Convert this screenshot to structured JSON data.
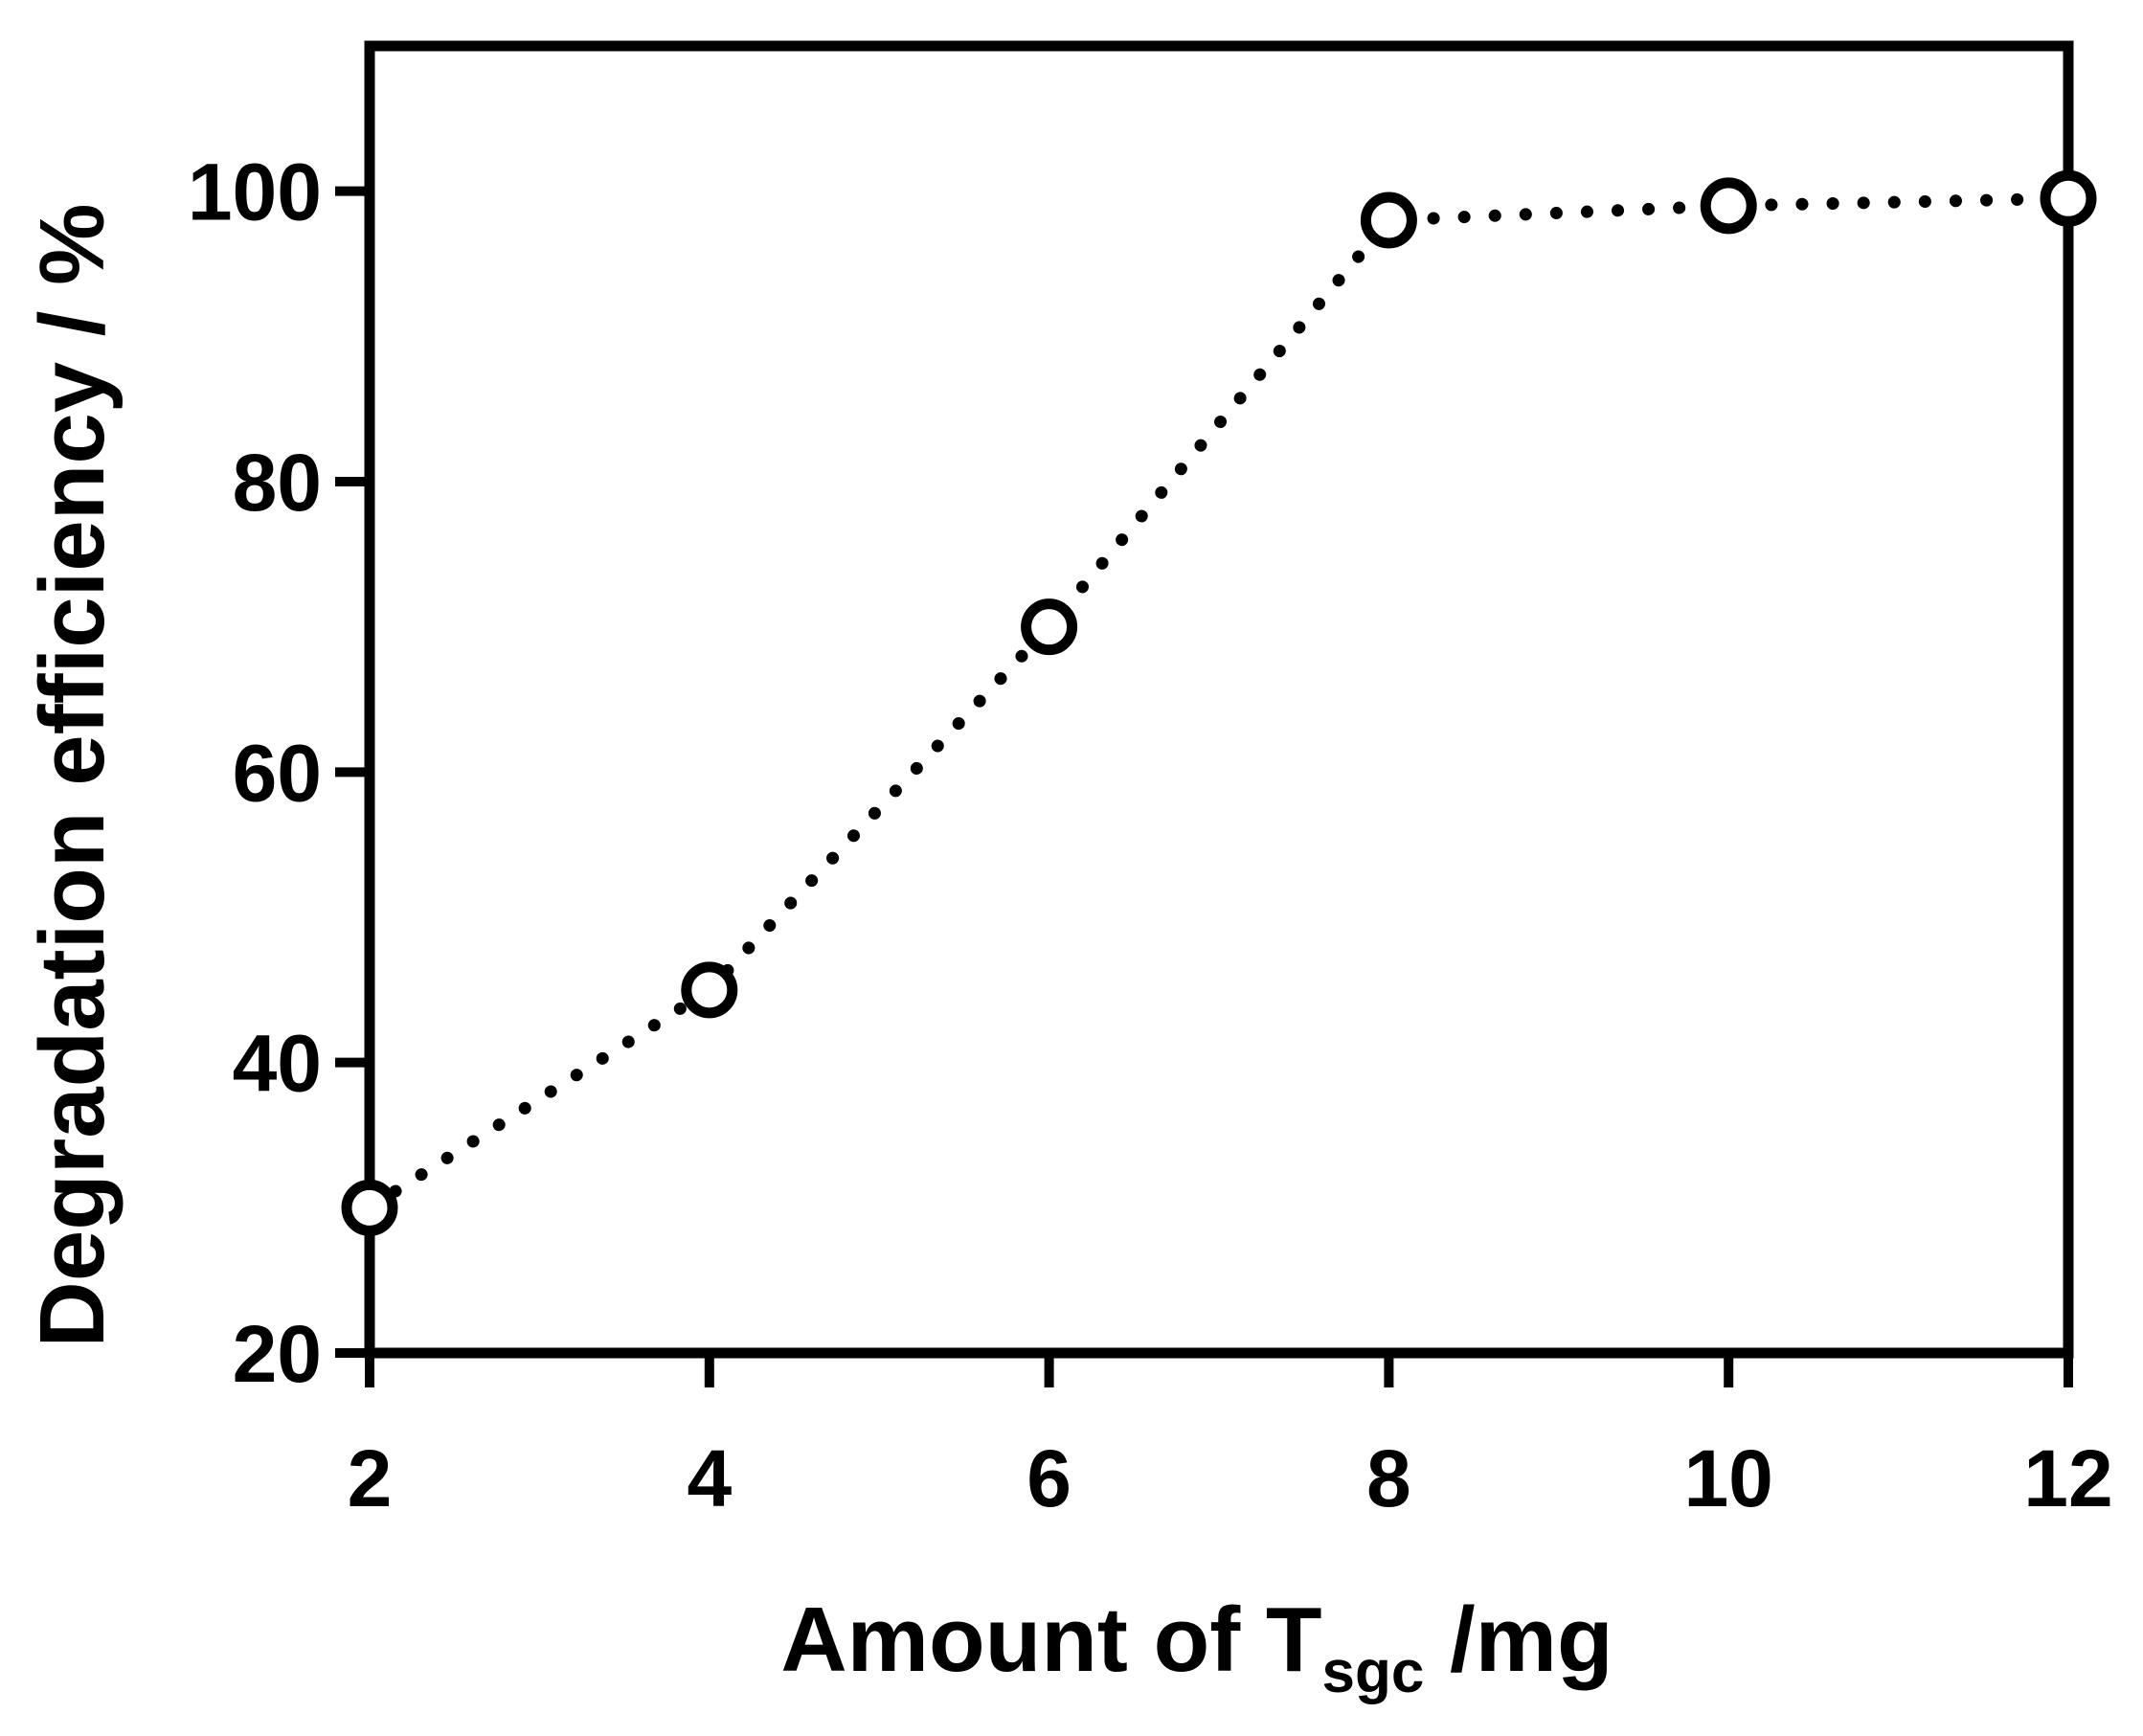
{
  "chart_data": {
    "type": "scatter",
    "title": "",
    "xlabel": {
      "main": "Amount of T",
      "subscript": "sgc",
      "suffix": " /mg"
    },
    "ylabel": "Degradation efficiency / %",
    "xlim": [
      2,
      12
    ],
    "ylim": [
      20,
      110
    ],
    "x_ticks": [
      2,
      4,
      6,
      8,
      10,
      12
    ],
    "y_ticks": [
      20,
      40,
      60,
      80,
      100
    ],
    "grid": false,
    "legend": "none",
    "series": [
      {
        "x": [
          2,
          4,
          6,
          8,
          10,
          12
        ],
        "y": [
          30,
          45,
          70,
          98,
          99,
          99.5
        ],
        "marker": "open-circle",
        "line": "dotted",
        "color": "#000000"
      }
    ]
  }
}
